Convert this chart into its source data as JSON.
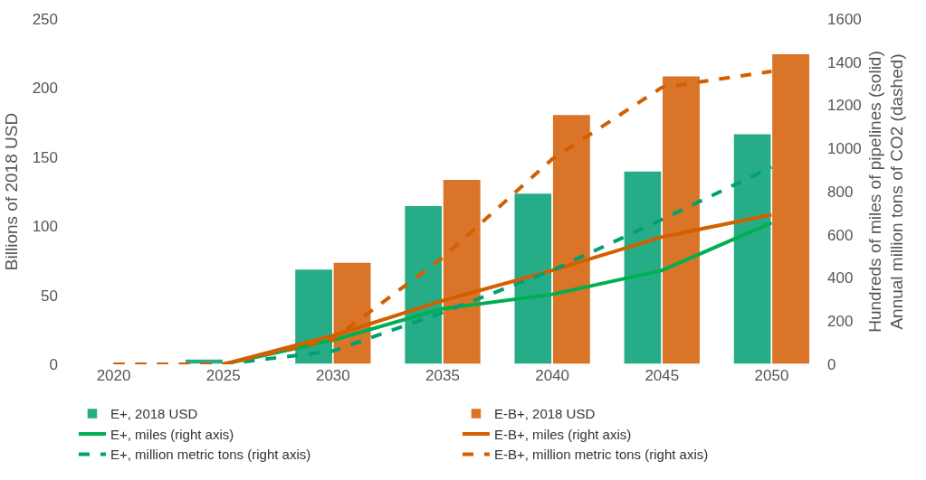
{
  "chart_data": {
    "type": "bar",
    "ylabel": "Billions of 2018 USD",
    "y2label": "Hundreds of miles of pipelines (solid)\nAnnual million tons of CO2 (dashed)",
    "categories": [
      "2020",
      "2025",
      "2030",
      "2035",
      "2040",
      "2045",
      "2050"
    ],
    "ylim": [
      0,
      250
    ],
    "yticks": [
      0,
      50,
      100,
      150,
      200,
      250
    ],
    "y2lim": [
      0,
      1600
    ],
    "y2ticks": [
      0,
      200,
      400,
      600,
      800,
      1000,
      1200,
      1400,
      1600
    ],
    "grid": false,
    "legend": "bottom",
    "series": [
      {
        "name": "E+, 2018 USD",
        "color": "#26ad88",
        "values": [
          null,
          4,
          69,
          115,
          124,
          140,
          167
        ]
      },
      {
        "name": "E-B+, 2018 USD",
        "color": "#d97428",
        "values": [
          null,
          null,
          74,
          134,
          181,
          209,
          225
        ]
      },
      {
        "name": "E+, miles (right axis)",
        "type": "line",
        "axis": "y2",
        "line_style": "solid",
        "color": "#00b050",
        "values": [
          null,
          0,
          112,
          258,
          324,
          435,
          656
        ]
      },
      {
        "name": "E-B+, miles (right axis)",
        "type": "line",
        "axis": "y2",
        "line_style": "solid",
        "color": "#d35f00",
        "values": [
          null,
          0,
          133,
          295,
          435,
          590,
          693
        ]
      },
      {
        "name": "E+, million metric tons (right axis)",
        "type": "line",
        "axis": "y2",
        "line_style": "dashed",
        "color": "#00a070",
        "values": [
          0,
          0,
          62,
          240,
          435,
          671,
          914
        ]
      },
      {
        "name": "E-B+, million metric tons (right axis)",
        "type": "line",
        "axis": "y2",
        "line_style": "dashed",
        "color": "#d35f00",
        "values": [
          0,
          0,
          116,
          494,
          951,
          1283,
          1357
        ]
      }
    ]
  }
}
